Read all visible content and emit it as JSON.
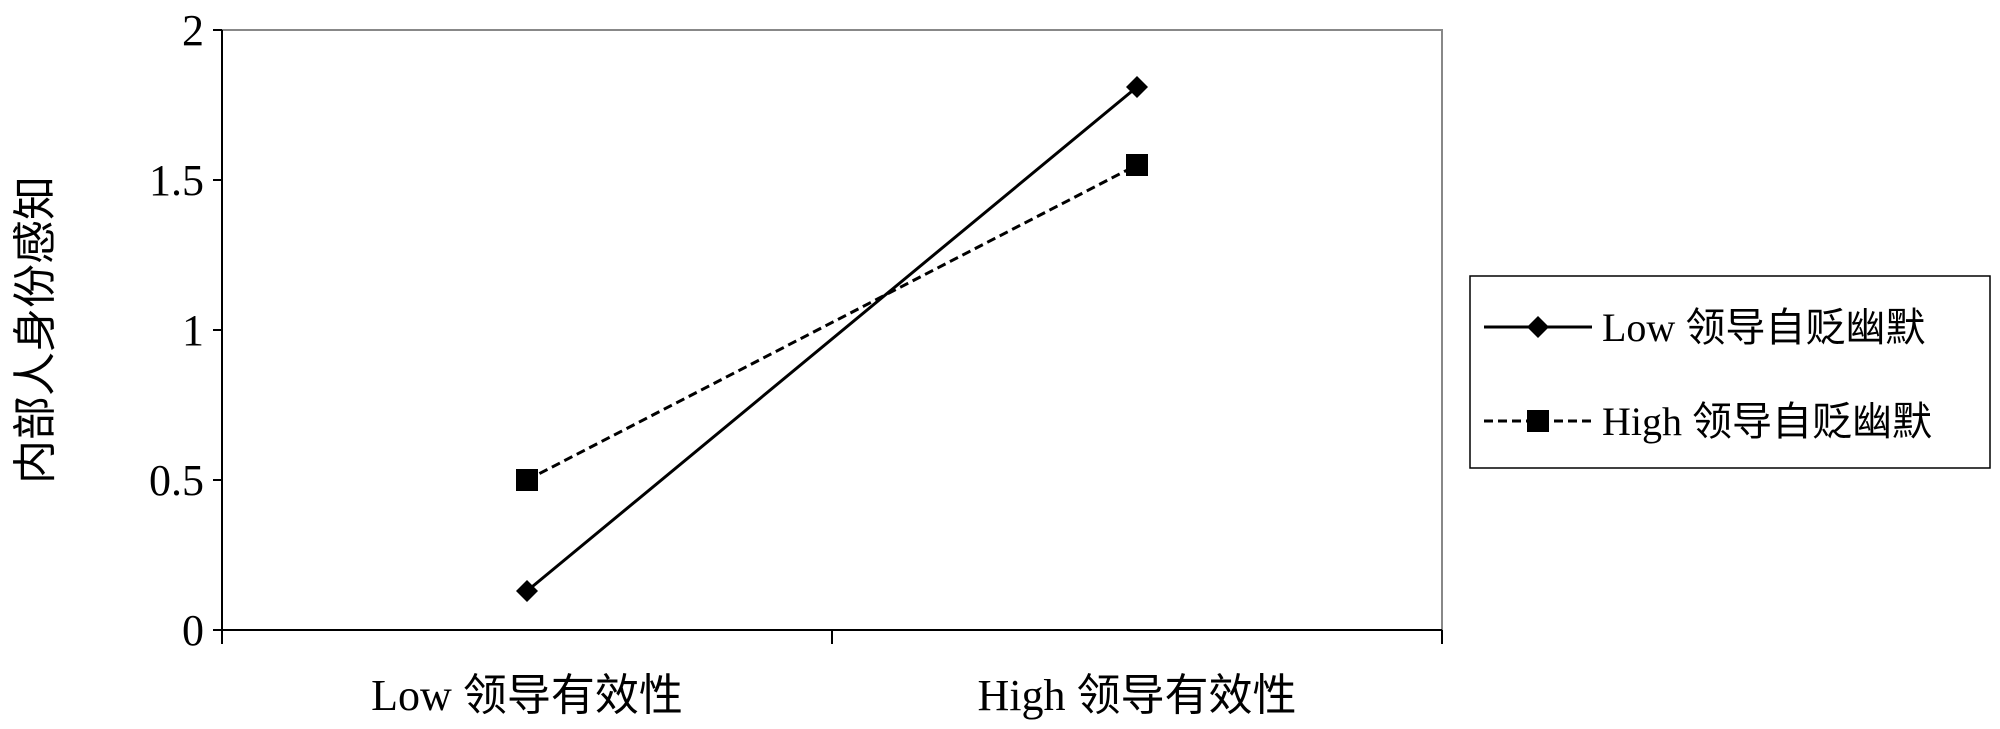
{
  "chart_data": {
    "type": "line",
    "title": "",
    "xlabel": "",
    "ylabel": "内部人身份感知",
    "categories": [
      "Low 领导有效性",
      "High 领导有效性"
    ],
    "ylim": [
      0,
      2
    ],
    "yticks": [
      "0",
      "0.5",
      "1",
      "1.5",
      "2"
    ],
    "grid": false,
    "legend_position": "right",
    "series": [
      {
        "name": "Low 领导自贬幽默",
        "values": [
          0.13,
          1.81
        ],
        "marker": "diamond",
        "line_style": "solid",
        "color": "#000000"
      },
      {
        "name": "High 领导自贬幽默",
        "values": [
          0.5,
          1.55
        ],
        "marker": "square",
        "line_style": "dashed",
        "color": "#000000"
      }
    ]
  }
}
